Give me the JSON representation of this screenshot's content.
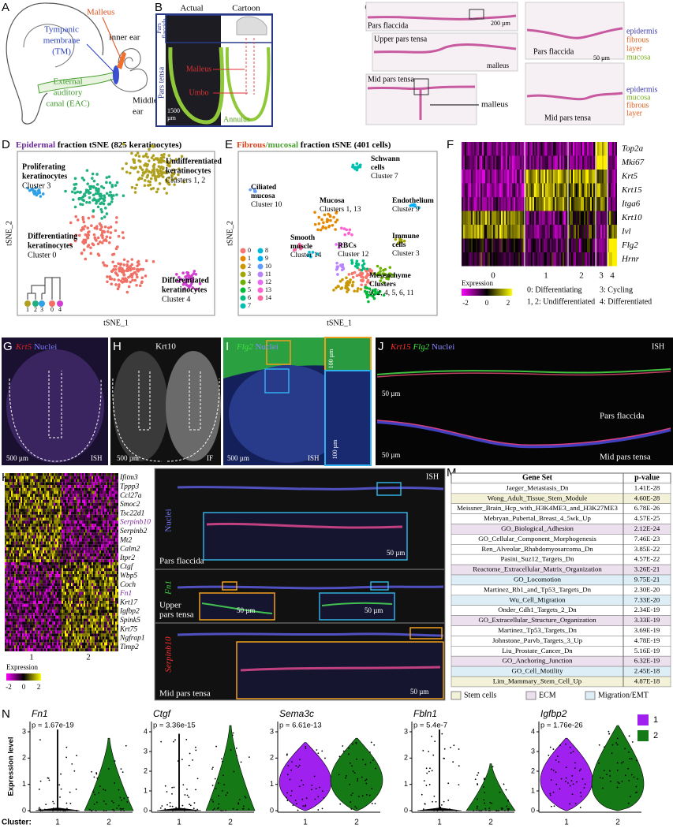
{
  "A": {
    "letter": "A",
    "malleus": "Malleus",
    "tm": [
      "Tympanic",
      "membrane",
      "(TM)"
    ],
    "inner_ear": "Inner ear",
    "eac": [
      "External",
      "auditory",
      "canal (EAC)"
    ],
    "middle_ear": [
      "Middle",
      "ear"
    ]
  },
  "B": {
    "letter": "B",
    "actual": "Actual",
    "cartoon": "Cartoon",
    "pars_flaccida": [
      "Pars",
      "flaccida"
    ],
    "pars_tensa": "Pars tensa",
    "malleus": "Malleus",
    "umbo": "Umbo",
    "annulus": "Annulus",
    "scale": [
      "1500",
      "µm"
    ]
  },
  "C": {
    "letter": "C",
    "pars_flaccida": "Pars flaccida",
    "scale_200": "200 µm",
    "upper": "Upper pars tensa",
    "malleus_1": "malleus",
    "mid": "Mid pars tensa",
    "malleus_2": "malleus",
    "pf_detail": "Pars flaccida",
    "layers_top": [
      "epidermis",
      "fibrous",
      "layer",
      "mucosa"
    ],
    "scale_50": "50 µm",
    "mid_detail": "Mid pars tensa",
    "layers_bottom": [
      "epidermis",
      "mucosa",
      "fibrous",
      "layer"
    ]
  },
  "D": {
    "letter": "D",
    "title": [
      "Epidermal",
      " fraction tSNE (825 keratinocytes)"
    ],
    "y_label": "tSNE_2",
    "x_label": "tSNE_1",
    "clusters": [
      {
        "name": [
          "Proliferating",
          "keratinocytes"
        ],
        "id": "Cluster 3"
      },
      {
        "name": [
          "Undifferentiated",
          "keratinocytes"
        ],
        "id": "Clusters 1, 2"
      },
      {
        "name": [
          "Differentiating",
          "keratinocytes"
        ],
        "id": "Cluster 0"
      },
      {
        "name": [
          "Differentiated",
          "keratinocytes"
        ],
        "id": "Cluster 4"
      }
    ],
    "dendrogram_leaves": [
      "1",
      "2",
      "3",
      "0",
      "4"
    ]
  },
  "E": {
    "letter": "E",
    "title": [
      "Fibrous",
      "/mucosal",
      " fraction tSNE (401 cells)"
    ],
    "y_label": "tSNE_2",
    "x_label": "tSNE_1",
    "clusters": [
      {
        "name": [
          "Schwann",
          "cells"
        ],
        "id": "Cluster 7"
      },
      {
        "name": [
          "Ciliated",
          "mucosa"
        ],
        "id": "Cluster 10"
      },
      {
        "name": [
          "Mucosa"
        ],
        "id": "Clusters 1, 13"
      },
      {
        "name": [
          "Endothelium"
        ],
        "id": "Cluster 9"
      },
      {
        "name": [
          "Immune",
          "cells"
        ],
        "id": "Cluster 3"
      },
      {
        "name": [
          "Smooth",
          "muscle"
        ],
        "id": "Cluster 14"
      },
      {
        "name": [
          "RBCs"
        ],
        "id": "Cluster 12"
      },
      {
        "name": [
          "Mesenchyme",
          "Clusters"
        ],
        "id": "0, 2, 4, 5, 6, 11"
      }
    ],
    "legend": [
      {
        "label": "0",
        "color": "#f8766d"
      },
      {
        "label": "1",
        "color": "#e58700"
      },
      {
        "label": "2",
        "color": "#c99800"
      },
      {
        "label": "3",
        "color": "#a3a500"
      },
      {
        "label": "4",
        "color": "#6bb100"
      },
      {
        "label": "5",
        "color": "#00ba38"
      },
      {
        "label": "6",
        "color": "#00bf7d"
      },
      {
        "label": "7",
        "color": "#00c0af"
      },
      {
        "label": "8",
        "color": "#00bcd8"
      },
      {
        "label": "9",
        "color": "#00b0f6"
      },
      {
        "label": "10",
        "color": "#619cff"
      },
      {
        "label": "11",
        "color": "#b983ff"
      },
      {
        "label": "12",
        "color": "#e76bf3"
      },
      {
        "label": "13",
        "color": "#fd61d1"
      },
      {
        "label": "14",
        "color": "#ff67a4"
      }
    ]
  },
  "F": {
    "letter": "F",
    "genes": [
      "Top2a",
      "Mki67",
      "Krt5",
      "Krt15",
      "Itga6",
      "Krt10",
      "Ivl",
      "Flg2",
      "Hrnr"
    ],
    "clusters": [
      "0",
      "1",
      "2",
      "3",
      "4"
    ],
    "expression": "Expression",
    "ticks": [
      "-2",
      "0",
      "2"
    ],
    "legend": [
      "0: Differentiating",
      "1, 2: Undifferentiated",
      "3: Cycling",
      "4: Differentiated"
    ]
  },
  "G": {
    "letter": "G",
    "stain": [
      "Krt5",
      " Nuclei"
    ],
    "scale": "500 µm",
    "method": "ISH"
  },
  "H": {
    "letter": "H",
    "stain": "Krt10",
    "scale": "500 µm",
    "method": "IF"
  },
  "I": {
    "letter": "I",
    "stain": [
      "Flg2",
      " Nuclei"
    ],
    "scale": "500 µm",
    "method": "ISH",
    "inset_scale_1": "100 µm",
    "inset_scale_2": "100 µm"
  },
  "J": {
    "letter": "J",
    "stain": [
      "Krt15",
      " Flg2",
      " Nuclei"
    ],
    "method": "ISH",
    "scale_1": "50 µm",
    "region_1": "Pars flaccida",
    "scale_2": "50 µm",
    "region_2": "Mid pars tensa"
  },
  "K": {
    "letter": "K",
    "genes": [
      {
        "name": "Ifitm3",
        "color": "#000"
      },
      {
        "name": "Tppp3",
        "color": "#000"
      },
      {
        "name": "Ccl27a",
        "color": "#000"
      },
      {
        "name": "Smoc2",
        "color": "#000"
      },
      {
        "name": "Tsc22d1",
        "color": "#000"
      },
      {
        "name": "Serpinb10",
        "color": "#7a2a9a"
      },
      {
        "name": "Serpinb2",
        "color": "#000"
      },
      {
        "name": "Mt2",
        "color": "#000"
      },
      {
        "name": "Calm2",
        "color": "#000"
      },
      {
        "name": "Itpr2",
        "color": "#000"
      },
      {
        "name": "Ctgf",
        "color": "#000"
      },
      {
        "name": "Wbp5",
        "color": "#000"
      },
      {
        "name": "Coch",
        "color": "#000"
      },
      {
        "name": "Fn1",
        "color": "#7a2a9a"
      },
      {
        "name": "Krt17",
        "color": "#000"
      },
      {
        "name": "Igfbp2",
        "color": "#000"
      },
      {
        "name": "Spink5",
        "color": "#000"
      },
      {
        "name": "Krt75",
        "color": "#000"
      },
      {
        "name": "Ngfrap1",
        "color": "#000"
      },
      {
        "name": "Timp2",
        "color": "#000"
      }
    ],
    "clusters": [
      "1",
      "2"
    ],
    "expression": "Expression",
    "ticks": [
      "-2",
      "0",
      "2"
    ]
  },
  "L": {
    "letter": "L",
    "stain": [
      "Nuclei",
      "Fn1",
      "Serpinb10"
    ],
    "method": "ISH",
    "regions": [
      "Pars flaccida",
      [
        "Upper",
        "pars tensa"
      ],
      "Mid pars tensa"
    ],
    "scales": [
      "50 µm",
      "50 µm",
      "50 µm",
      "50 µm"
    ]
  },
  "M": {
    "letter": "M",
    "header": [
      "Gene Set",
      "p-value"
    ],
    "rows": [
      [
        "Jaeger_Metastasis_Dn",
        "1.41E-28"
      ],
      [
        "Wong_Adult_Tissue_Stem_Module",
        "4.60E-28"
      ],
      [
        "Meissner_Brain_Hcp_with_H3K4ME3_and_H3K27ME3",
        "6.78E-26"
      ],
      [
        "Mebryan_Pubertal_Breast_4_5wk_Up",
        "4.57E-25"
      ],
      [
        "GO_Biological_Adhesion",
        "2.12E-24"
      ],
      [
        "GO_Cellular_Component_Morphogenesis",
        "7.46E-23"
      ],
      [
        "Ren_Alveolar_Rhabdomyosarcoma_Dn",
        "3.85E-22"
      ],
      [
        "Pasini_Suz12_Targets_Dn",
        "4.57E-22"
      ],
      [
        "Reactome_Extracellular_Matrix_Organization",
        "3.26E-21"
      ],
      [
        "GO_Locomotion",
        "9.75E-21"
      ],
      [
        "Martinez_Rb1_and_Tp53_Targets_Dn",
        "2.30E-20"
      ],
      [
        "Wu_Cell_Migration",
        "7.33E-20"
      ],
      [
        "Onder_Cdh1_Targets_2_Dn",
        "2.34E-19"
      ],
      [
        "GO_Extracellular_Structure_Organization",
        "3.33E-19"
      ],
      [
        "Martinez_Tp53_Targets_Dn",
        "3.69E-19"
      ],
      [
        "Johnstone_Parvb_Targets_3_Up",
        "4.78E-19"
      ],
      [
        "Liu_Prostate_Cancer_Dn",
        "5.16E-19"
      ],
      [
        "GO_Anchoring_Junction",
        "6.32E-19"
      ],
      [
        "GO_Cell_Motility",
        "2.45E-18"
      ],
      [
        "Lim_Mammary_Stem_Cell_Up",
        "4.87E-18"
      ]
    ],
    "row_colors": [
      "#ffffff",
      "#f3f1d8",
      "#ffffff",
      "#ffffff",
      "#ece0ee",
      "#ffffff",
      "#ffffff",
      "#ffffff",
      "#ece0ee",
      "#ddeef6",
      "#ffffff",
      "#ddeef6",
      "#ffffff",
      "#ece0ee",
      "#ffffff",
      "#ffffff",
      "#ffffff",
      "#ece0ee",
      "#ddeef6",
      "#f3f1d8"
    ],
    "legend": [
      {
        "label": "Stem cells",
        "color": "#f3f1d8"
      },
      {
        "label": "ECM",
        "color": "#ece0ee"
      },
      {
        "label": "Migration/EMT",
        "color": "#ddeef6"
      }
    ]
  },
  "N": {
    "letter": "N",
    "y_label": "Expression level",
    "x_label": "Cluster:",
    "plots": [
      {
        "gene": "Fn1",
        "p": "p = 1.67e-19",
        "yticks": [
          0,
          1,
          2,
          3
        ],
        "clusters": [
          "1",
          "2"
        ]
      },
      {
        "gene": "Ctgf",
        "p": "p = 3.36e-15",
        "yticks": [
          0,
          1,
          2,
          3,
          4
        ],
        "clusters": [
          "1",
          "2"
        ]
      },
      {
        "gene": "Sema3c",
        "p": "p = 6.61e-13",
        "yticks": [
          0,
          1,
          2,
          3
        ],
        "clusters": [
          "1",
          "2"
        ]
      },
      {
        "gene": "Fbln1",
        "p": "p = 5.4e-7",
        "yticks": [
          0,
          1,
          2,
          3
        ],
        "clusters": [
          "1",
          "2"
        ]
      },
      {
        "gene": "Igfbp2",
        "p": "p = 1.76e-26",
        "yticks": [
          0,
          1,
          2,
          3,
          4
        ],
        "clusters": [
          "1",
          "2"
        ]
      }
    ],
    "legend": [
      {
        "label": "1",
        "color": "#a020f0"
      },
      {
        "label": "2",
        "color": "#157a15"
      }
    ]
  }
}
